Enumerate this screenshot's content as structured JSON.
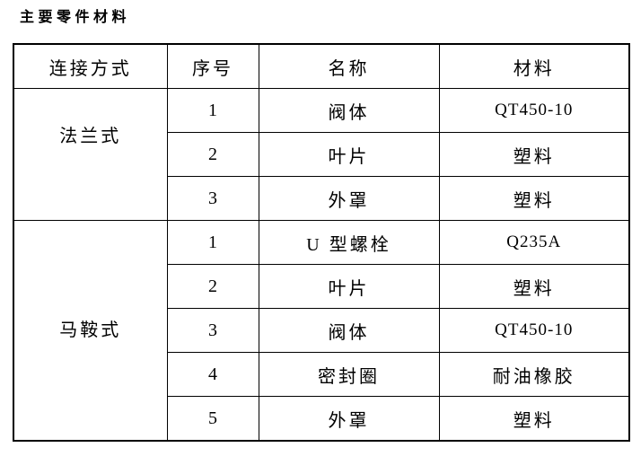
{
  "title": "主要零件材料",
  "table": {
    "headers": [
      "连接方式",
      "序号",
      "名称",
      "材料"
    ],
    "groups": [
      {
        "connection": "法兰式",
        "rows": [
          {
            "no": "1",
            "name": "阀体",
            "material": "QT450-10"
          },
          {
            "no": "2",
            "name": "叶片",
            "material": "塑料"
          },
          {
            "no": "3",
            "name": "外罩",
            "material": "塑料"
          }
        ]
      },
      {
        "connection": "马鞍式",
        "rows": [
          {
            "no": "1",
            "name": "U 型螺栓",
            "material": "Q235A"
          },
          {
            "no": "2",
            "name": "叶片",
            "material": "塑料"
          },
          {
            "no": "3",
            "name": "阀体",
            "material": "QT450-10"
          },
          {
            "no": "4",
            "name": "密封圈",
            "material": "耐油橡胶"
          },
          {
            "no": "5",
            "name": "外罩",
            "material": "塑料"
          }
        ]
      }
    ]
  }
}
